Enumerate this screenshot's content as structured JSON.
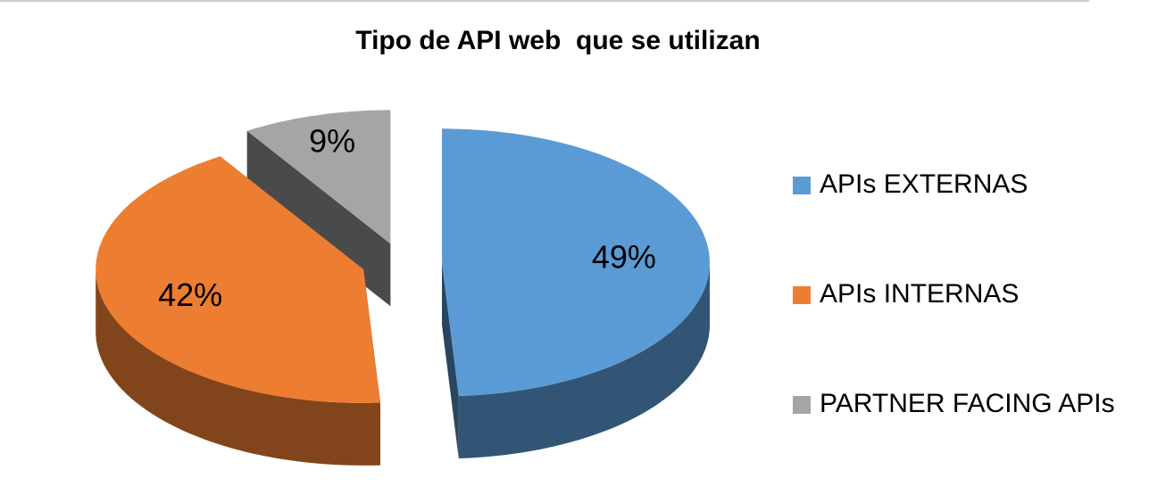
{
  "chart_data": {
    "type": "pie3d",
    "title": "Tipo de API web  que se utilizan",
    "categories": [
      "APIs EXTERNAS",
      "APIs INTERNAS",
      "PARTNER FACING APIs"
    ],
    "values": [
      49,
      42,
      9
    ],
    "value_labels": [
      "49%",
      "42%",
      "9%"
    ],
    "colors": [
      "#5b9bd5",
      "#ed7d31",
      "#a5a5a5"
    ],
    "legend": "right"
  }
}
